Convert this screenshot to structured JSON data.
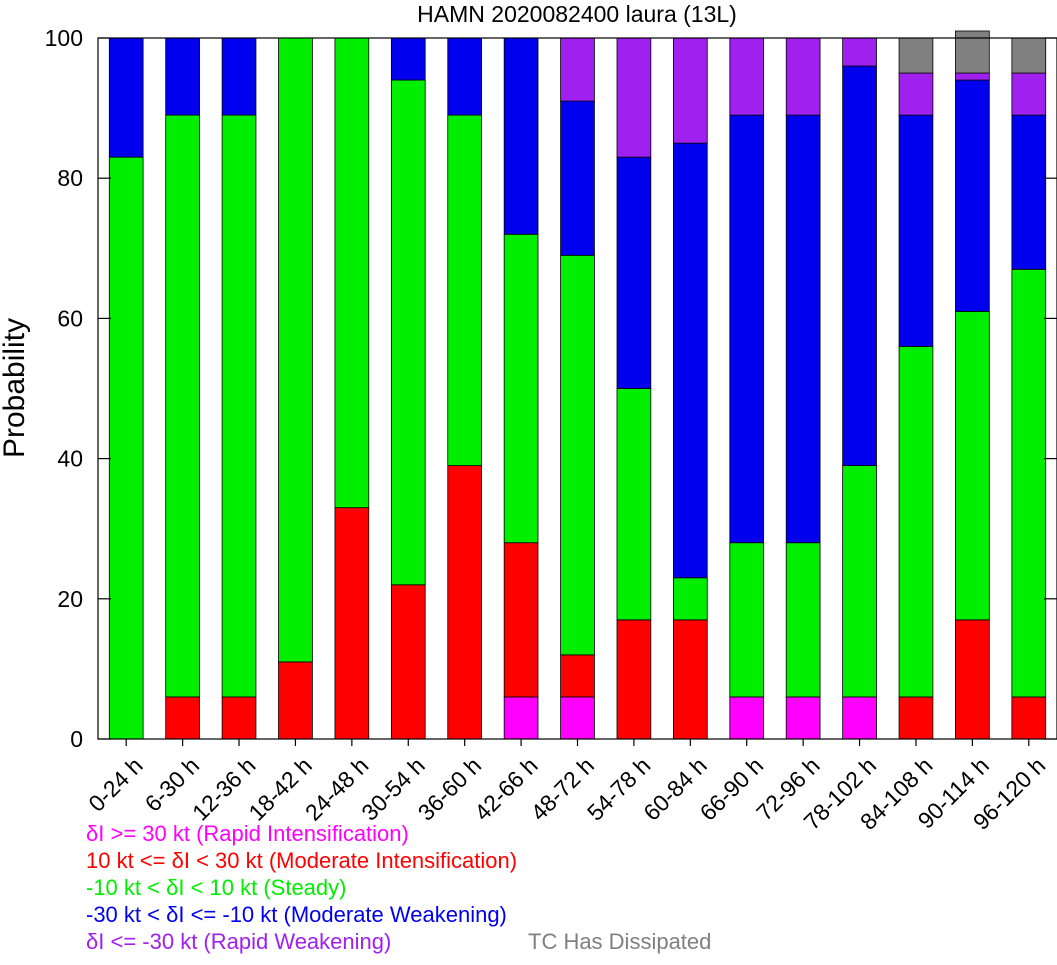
{
  "chart_data": {
    "type": "bar",
    "stacked": true,
    "title": "HAMN 2020082400 laura (13L)",
    "xlabel": "",
    "ylabel": "Probability",
    "ylim": [
      0,
      100
    ],
    "yticks": [
      0,
      20,
      40,
      60,
      80,
      100
    ],
    "grid": false,
    "categories": [
      "0-24 h",
      "6-30 h",
      "12-36 h",
      "18-42 h",
      "24-48 h",
      "30-54 h",
      "36-60 h",
      "42-66 h",
      "48-72 h",
      "54-78 h",
      "60-84 h",
      "66-90 h",
      "72-96 h",
      "78-102 h",
      "84-108 h",
      "90-114 h",
      "96-120 h"
    ],
    "series": [
      {
        "name": "δI >= 30 kt (Rapid Intensification)",
        "color": "#ff00ff",
        "values": [
          0,
          0,
          0,
          0,
          0,
          0,
          0,
          6,
          6,
          0,
          0,
          6,
          6,
          6,
          0,
          0,
          0
        ]
      },
      {
        "name": "10 kt <= δI < 30 kt (Moderate Intensification)",
        "color": "#ff0000",
        "values": [
          0,
          6,
          6,
          11,
          33,
          22,
          39,
          22,
          6,
          17,
          17,
          0,
          0,
          0,
          6,
          17,
          6
        ]
      },
      {
        "name": "-10 kt < δI < 10 kt (Steady)",
        "color": "#00ee00",
        "values": [
          83,
          83,
          83,
          89,
          67,
          72,
          50,
          44,
          57,
          33,
          6,
          22,
          22,
          33,
          50,
          44,
          61
        ]
      },
      {
        "name": "-30 kt < δI <= -10 kt (Moderate Weakening)",
        "color": "#0000ee",
        "values": [
          17,
          11,
          11,
          0,
          0,
          6,
          11,
          28,
          22,
          33,
          62,
          61,
          61,
          57,
          33,
          33,
          22
        ]
      },
      {
        "name": "δI <= -30 kt (Rapid Weakening)",
        "color": "#a020f0",
        "values": [
          0,
          0,
          0,
          0,
          0,
          0,
          0,
          0,
          9,
          17,
          15,
          11,
          11,
          4,
          6,
          1,
          6
        ]
      },
      {
        "name": "TC Has Dissipated",
        "color": "#808080",
        "values": [
          0,
          0,
          0,
          0,
          0,
          0,
          0,
          0,
          0,
          0,
          0,
          0,
          0,
          0,
          5,
          6,
          5
        ]
      }
    ]
  }
}
